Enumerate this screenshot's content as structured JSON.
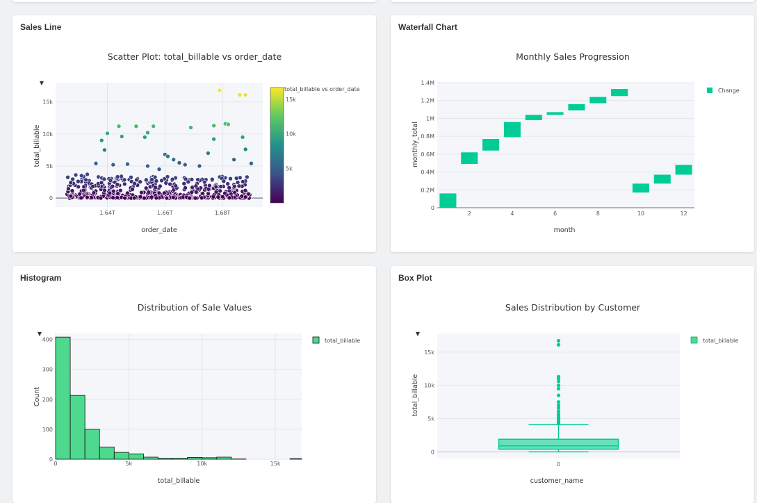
{
  "colors": {
    "accent": "#00cc96",
    "box": "#00cc96",
    "hist": "#4fd98f"
  },
  "cards": {
    "c1": {
      "title": "Sales Line"
    },
    "c2": {
      "title": "Waterfall Chart"
    },
    "c3": {
      "title": "Histogram"
    },
    "c4": {
      "title": "Box Plot"
    }
  },
  "chart_data": [
    {
      "type": "scatter",
      "title": "Scatter Plot: total_billable vs order_date",
      "xlabel": "order_date",
      "ylabel": "total_billable",
      "xticks": [
        "1.64T",
        "1.66T",
        "1.68T"
      ],
      "yticks": [
        "0",
        "5k",
        "10k",
        "15k"
      ],
      "colorbar": {
        "title": "total_billable vs order_date",
        "ticks": [
          "5k",
          "10k",
          "15k"
        ],
        "colorscale": "viridis",
        "range": [
          0,
          16700
        ]
      },
      "points_high": [
        {
          "x": 1.629,
          "y": 3600
        },
        {
          "x": 1.631,
          "y": 3500
        },
        {
          "x": 1.633,
          "y": 3700
        },
        {
          "x": 1.636,
          "y": 5400
        },
        {
          "x": 1.638,
          "y": 9000
        },
        {
          "x": 1.639,
          "y": 7500
        },
        {
          "x": 1.64,
          "y": 10100
        },
        {
          "x": 1.642,
          "y": 5200
        },
        {
          "x": 1.644,
          "y": 11200
        },
        {
          "x": 1.645,
          "y": 9600
        },
        {
          "x": 1.647,
          "y": 5300
        },
        {
          "x": 1.65,
          "y": 11200
        },
        {
          "x": 1.653,
          "y": 9500
        },
        {
          "x": 1.654,
          "y": 10200
        },
        {
          "x": 1.656,
          "y": 11200
        },
        {
          "x": 1.654,
          "y": 5000
        },
        {
          "x": 1.658,
          "y": 4500
        },
        {
          "x": 1.66,
          "y": 6800
        },
        {
          "x": 1.661,
          "y": 6500
        },
        {
          "x": 1.663,
          "y": 6000
        },
        {
          "x": 1.665,
          "y": 5500
        },
        {
          "x": 1.667,
          "y": 5200
        },
        {
          "x": 1.669,
          "y": 11000
        },
        {
          "x": 1.672,
          "y": 5000
        },
        {
          "x": 1.675,
          "y": 7000
        },
        {
          "x": 1.677,
          "y": 9200
        },
        {
          "x": 1.677,
          "y": 11300
        },
        {
          "x": 1.679,
          "y": 16800
        },
        {
          "x": 1.681,
          "y": 11600
        },
        {
          "x": 1.682,
          "y": 11500
        },
        {
          "x": 1.684,
          "y": 6000
        },
        {
          "x": 1.686,
          "y": 16100
        },
        {
          "x": 1.688,
          "y": 16100
        },
        {
          "x": 1.687,
          "y": 9500
        },
        {
          "x": 1.688,
          "y": 7600
        },
        {
          "x": 1.69,
          "y": 5400
        }
      ],
      "x_range": [
        1.622,
        1.694
      ],
      "y_range": [
        -1400,
        18000
      ]
    },
    {
      "type": "bar",
      "subtype": "waterfall",
      "title": "Monthly Sales Progression",
      "xlabel": "month",
      "ylabel": "monthly_total",
      "xticks": [
        2,
        4,
        6,
        8,
        10,
        12
      ],
      "yticks": [
        "0",
        "0.2M",
        "0.4M",
        "0.6M",
        "0.8M",
        "1M",
        "1.2M",
        "1.4M"
      ],
      "legend": [
        "Change"
      ],
      "categories": [
        1,
        2,
        3,
        4,
        5,
        6,
        7,
        8,
        9,
        10,
        11,
        12
      ],
      "base": [
        0,
        490000,
        640000,
        790000,
        980000,
        1040000,
        1090000,
        1170000,
        1250000,
        170000,
        270000,
        370000
      ],
      "top": [
        160000,
        620000,
        770000,
        960000,
        1040000,
        1070000,
        1160000,
        1240000,
        1330000,
        270000,
        370000,
        480000
      ],
      "y_range": [
        0,
        1400000
      ],
      "x_range": [
        0.5,
        12.5
      ]
    },
    {
      "type": "bar",
      "subtype": "histogram",
      "title": "Distribution of Sale Values",
      "xlabel": "total_billable",
      "ylabel": "Count",
      "xticks": [
        "0",
        "5k",
        "10k",
        "15k"
      ],
      "yticks": [
        "0",
        "100",
        "200",
        "300",
        "400"
      ],
      "legend": [
        "total_billable"
      ],
      "bin_width": 1000,
      "counts": [
        408,
        213,
        100,
        41,
        23,
        18,
        7,
        3,
        3,
        6,
        5,
        7,
        1,
        0,
        0,
        0,
        2
      ],
      "x_range": [
        0,
        16800
      ],
      "y_range": [
        0,
        420
      ]
    },
    {
      "type": "bar",
      "subtype": "box",
      "title": "Sales Distribution by Customer",
      "xlabel": "customer_name",
      "ylabel": "total_billable",
      "xticks": [
        "0"
      ],
      "yticks": [
        "0",
        "5k",
        "10k",
        "15k"
      ],
      "legend": [
        "total_billable"
      ],
      "stats": {
        "min": 0,
        "q1": 400,
        "median": 900,
        "q3": 1900,
        "upper_fence": 4100
      },
      "outliers": [
        4300,
        4500,
        4700,
        4900,
        5100,
        5400,
        5700,
        6100,
        6600,
        7000,
        7500,
        8500,
        9500,
        10000,
        10600,
        11000,
        11300,
        16100,
        16700
      ],
      "y_range": [
        -1000,
        17800
      ]
    }
  ]
}
